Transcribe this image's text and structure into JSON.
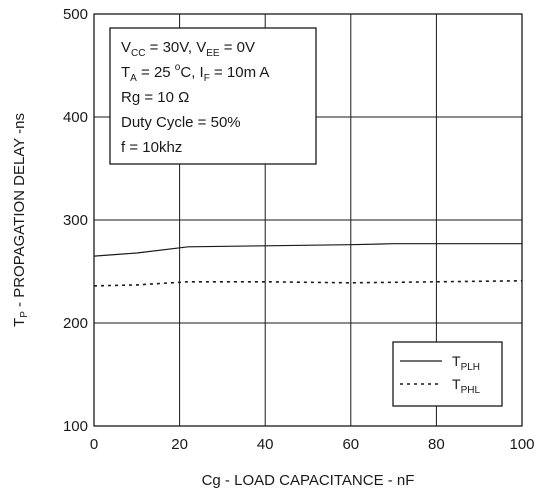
{
  "chart_data": {
    "type": "line",
    "xlabel": "Cg - LOAD CAPACITANCE - nF",
    "ylabel": "T",
    "ylabel_sub": "P",
    "ylabel_rest": " - PROPAGATION DELAY -ns",
    "xlim": [
      0,
      100
    ],
    "ylim": [
      100,
      500
    ],
    "x_ticks": [
      "0",
      "20",
      "40",
      "60",
      "80",
      "100"
    ],
    "y_ticks": [
      "100",
      "200",
      "300",
      "400",
      "500"
    ],
    "grid": true,
    "legend_position": "bottom-right",
    "series": [
      {
        "name": "T",
        "name_sub": "PLH",
        "style": "solid",
        "color": "#1a1a1a",
        "x": [
          0,
          10,
          22,
          40,
          60,
          70,
          80,
          100
        ],
        "y": [
          265,
          268,
          274,
          275,
          276,
          277,
          277,
          277
        ]
      },
      {
        "name": "T",
        "name_sub": "PHL",
        "style": "dotted",
        "color": "#1a1a1a",
        "x": [
          0,
          10,
          22,
          40,
          60,
          80,
          100
        ],
        "y": [
          236,
          237,
          240,
          240,
          239,
          240,
          241
        ]
      }
    ],
    "conditions": {
      "line1": {
        "a": "V",
        "a_sub": "CC",
        "b": " = 30V,  V",
        "b_sub": "EE",
        "c": " = 0V"
      },
      "line2": {
        "a": "T",
        "a_sub": "A",
        "b": " = 25 ",
        "b_sup": "o",
        "c": "C, I",
        "c_sub": "F",
        "d": " = 10m A"
      },
      "line3": "Rg = 10 Ω",
      "line4": "Duty Cycle = 50%",
      "line5": "f = 10khz"
    }
  }
}
